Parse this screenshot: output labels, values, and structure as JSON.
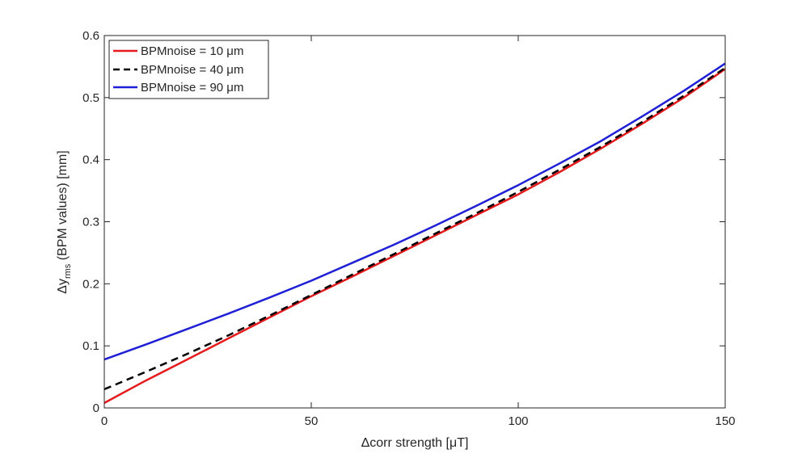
{
  "chart_data": {
    "type": "line",
    "title": "",
    "xlabel": "Δcorr strength [μT]",
    "ylabel_main": "Δy",
    "ylabel_sub": "rms",
    "ylabel_rest": " (BPM values) [mm]",
    "xlim": [
      0,
      150
    ],
    "ylim": [
      0,
      0.6
    ],
    "xticks": [
      0,
      50,
      100,
      150
    ],
    "xtick_labels": [
      "0",
      "50",
      "100",
      "150"
    ],
    "yticks": [
      0,
      0.1,
      0.2,
      0.3,
      0.4,
      0.5,
      0.6
    ],
    "ytick_labels": [
      "0",
      "0.1",
      "0.2",
      "0.3",
      "0.4",
      "0.5",
      "0.6"
    ],
    "grid": false,
    "legend_position": "top-left",
    "x": [
      0,
      10,
      20,
      30,
      40,
      50,
      60,
      70,
      80,
      90,
      100,
      110,
      120,
      130,
      140,
      150
    ],
    "series": [
      {
        "name": "BPMnoise = 10 μm",
        "color": "#e41a1c",
        "dash": "solid",
        "values": [
          0.008,
          0.044,
          0.078,
          0.112,
          0.146,
          0.18,
          0.212,
          0.245,
          0.278,
          0.311,
          0.344,
          0.38,
          0.418,
          0.458,
          0.5,
          0.546
        ]
      },
      {
        "name": "BPMnoise = 40 μm",
        "color": "#000000",
        "dash": "dashed",
        "values": [
          0.03,
          0.058,
          0.087,
          0.117,
          0.149,
          0.182,
          0.215,
          0.248,
          0.281,
          0.314,
          0.348,
          0.384,
          0.421,
          0.461,
          0.503,
          0.548
        ]
      },
      {
        "name": "BPMnoise = 90 μm",
        "color": "#1f1fd6",
        "dash": "solid",
        "values": [
          0.078,
          0.102,
          0.127,
          0.152,
          0.178,
          0.205,
          0.234,
          0.263,
          0.294,
          0.326,
          0.359,
          0.394,
          0.43,
          0.47,
          0.511,
          0.555
        ]
      }
    ]
  }
}
